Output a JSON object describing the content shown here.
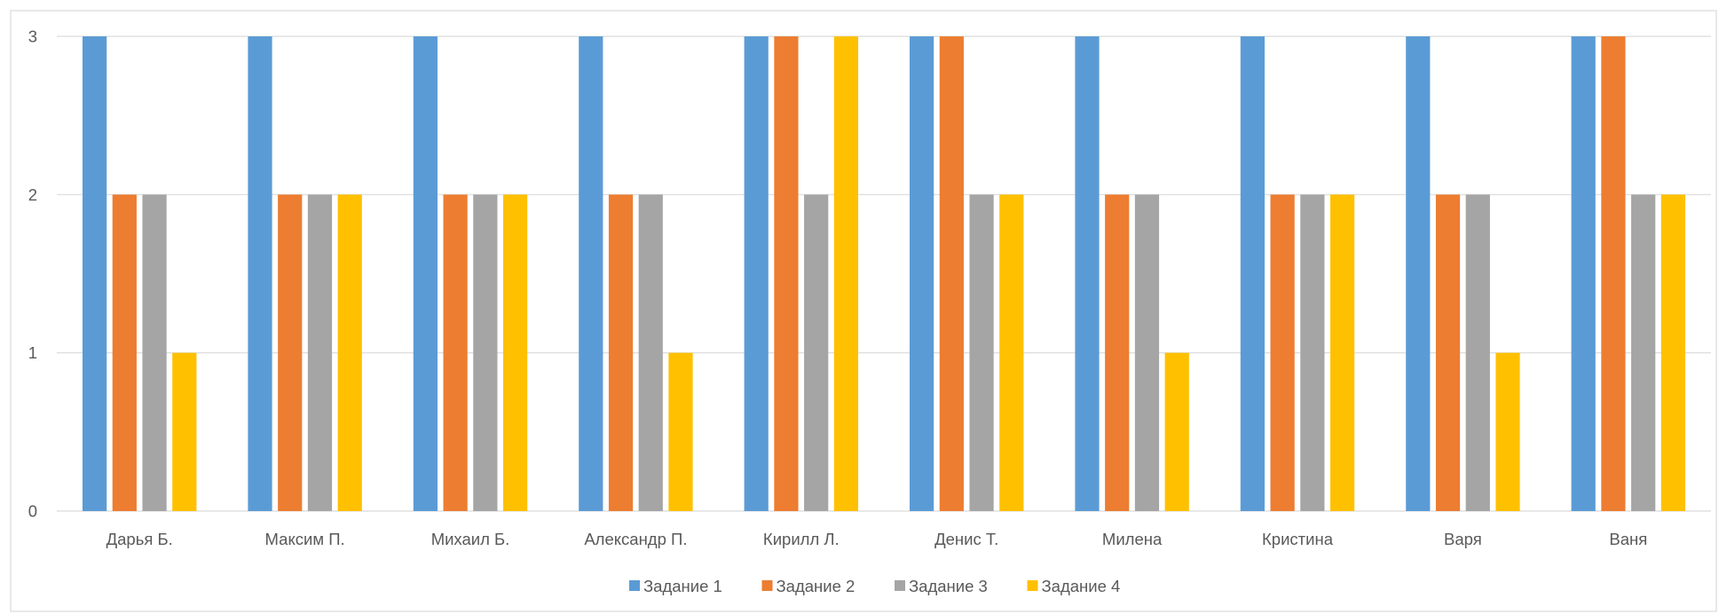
{
  "chart_data": {
    "type": "bar",
    "categories": [
      "Дарья Б.",
      "Максим П.",
      "Михаил Б.",
      "Александр П.",
      "Кирилл Л.",
      "Денис Т.",
      "Милена",
      "Кристина",
      "Варя",
      "Ваня"
    ],
    "series": [
      {
        "name": "Задание 1",
        "color": "#5B9BD5",
        "values": [
          3,
          3,
          3,
          3,
          3,
          3,
          3,
          3,
          3,
          3
        ]
      },
      {
        "name": "Задание 2",
        "color": "#ED7D31",
        "values": [
          2,
          2,
          2,
          2,
          3,
          3,
          2,
          2,
          2,
          3
        ]
      },
      {
        "name": "Задание 3",
        "color": "#A5A5A5",
        "values": [
          2,
          2,
          2,
          2,
          2,
          2,
          2,
          2,
          2,
          2
        ]
      },
      {
        "name": "Задание 4",
        "color": "#FFC000",
        "values": [
          1,
          2,
          2,
          1,
          3,
          2,
          1,
          2,
          1,
          2
        ]
      }
    ],
    "yticks": [
      "0",
      "1",
      "2",
      "3"
    ],
    "ylim": [
      0,
      3
    ],
    "grid": true,
    "legend": "bottom"
  }
}
